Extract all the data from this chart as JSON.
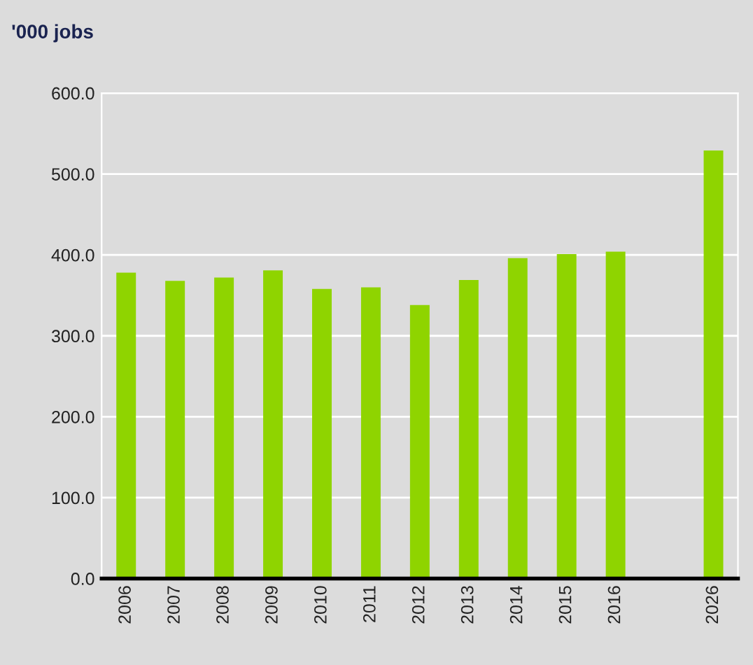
{
  "chart_data": {
    "type": "bar",
    "title": "'000 jobs",
    "categories": [
      "2006",
      "2007",
      "2008",
      "2009",
      "2010",
      "2011",
      "2012",
      "2013",
      "2014",
      "2015",
      "2016",
      null,
      "2026"
    ],
    "values": [
      378,
      368,
      372,
      381,
      358,
      360,
      338,
      369,
      396,
      401,
      404,
      null,
      529
    ],
    "color": "#8fd400",
    "ylim": [
      0,
      600
    ],
    "yticks": [
      {
        "value": 0,
        "label": "0.0"
      },
      {
        "value": 100,
        "label": "100.0"
      },
      {
        "value": 200,
        "label": "200.0"
      },
      {
        "value": 300,
        "label": "300.0"
      },
      {
        "value": 400,
        "label": "400.0"
      },
      {
        "value": 500,
        "label": "500.0"
      },
      {
        "value": 600,
        "label": "600.0"
      }
    ],
    "grid": "y",
    "legend": false
  }
}
